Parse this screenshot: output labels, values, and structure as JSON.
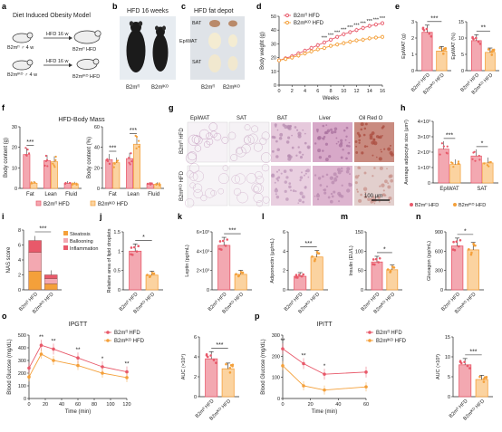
{
  "colors": {
    "wt": "#e8596a",
    "ko": "#f4a03a",
    "wt_light": "#f3a8b1",
    "ko_light": "#fbd3a0",
    "mouse": "#1b1b1b"
  },
  "panel_a": {
    "letter": "a",
    "title": "Diet Induced Obesity Model",
    "rows": [
      {
        "from": "B2mᶠˡ ♂ 4 w",
        "arrow": "HFD 16 w",
        "to": "B2mᶠˡ HFD"
      },
      {
        "from": "B2mᴵᴷᴼ ♂ 4 w",
        "arrow": "HFD 16 w",
        "to": "B2mᴵᴷᴼ HFD"
      }
    ]
  },
  "panel_b": {
    "letter": "b",
    "title": "HFD 16 weeks",
    "labels": [
      "B2mᶠˡ",
      "B2mᴵᴷᴼ"
    ]
  },
  "panel_c": {
    "letter": "c",
    "title": "HFD fat depot",
    "depots": [
      "BAT",
      "EpiWAT",
      "SAT"
    ],
    "labels": [
      "B2mᶠˡ",
      "B2mᴵᴷᴼ"
    ]
  },
  "panel_g": {
    "letter": "g",
    "columns": [
      "EpiWAT",
      "SAT",
      "BAT",
      "Liver",
      "Oil Red O"
    ],
    "rows": [
      "B2mᶠˡ HFD",
      "B2mᴵᴷᴼ HFD"
    ],
    "scale": "100 μm"
  },
  "legend": {
    "wt": "B2mᶠˡ HFD",
    "ko": "B2mᴵᴷᴼ HFD"
  },
  "chart_data": [
    {
      "id": "d",
      "type": "line",
      "ylabel": "Body weight (g)",
      "xlabel": "Weeks",
      "x": [
        0,
        1,
        2,
        3,
        4,
        5,
        6,
        7,
        8,
        9,
        10,
        11,
        12,
        13,
        14,
        15,
        16
      ],
      "xticks": [
        0,
        2,
        4,
        6,
        8,
        10,
        12,
        14,
        16
      ],
      "yticks": [
        0,
        10,
        20,
        30,
        40,
        50
      ],
      "ylim": [
        0,
        50
      ],
      "series": [
        {
          "name": "B2mᶠˡ HFD",
          "values": [
            18,
            19.5,
            21,
            23,
            25,
            27,
            29,
            31,
            33,
            35,
            37,
            38.5,
            40,
            41.5,
            43,
            44,
            45
          ]
        },
        {
          "name": "B2mᴵᴷᴼ HFD",
          "values": [
            18,
            19,
            20,
            21.5,
            23,
            24.5,
            26,
            27,
            28.5,
            29.5,
            30.5,
            31.5,
            32.5,
            33,
            34,
            34.5,
            35
          ]
        }
      ],
      "annotations": [
        "***"
      ]
    },
    {
      "id": "e1",
      "type": "bar",
      "ylabel": "EpiWAT (g)",
      "categories": [
        "B2mᶠˡ HFD",
        "B2mᴵᴷᴼ HFD"
      ],
      "values": [
        2.35,
        1.2
      ],
      "yticks": [
        0,
        1,
        2,
        3
      ],
      "ylim": [
        0,
        3
      ],
      "sig": "***"
    },
    {
      "id": "e2",
      "type": "bar",
      "ylabel": "EpiWAT (%)",
      "categories": [
        "B2mᶠˡ HFD",
        "B2mᴵᴷᴼ HFD"
      ],
      "values": [
        9.2,
        5.6
      ],
      "yticks": [
        0,
        5,
        10,
        15
      ],
      "ylim": [
        0,
        15
      ],
      "sig": "**"
    },
    {
      "id": "f",
      "type": "bar",
      "title": "HFD-Body Mass",
      "groups": [
        {
          "ylabel": "Body content (g)",
          "categories": [
            "Fat",
            "Lean",
            "Fluid"
          ],
          "yticks": [
            0,
            10,
            20,
            30
          ],
          "ylim": [
            0,
            30
          ],
          "series": [
            {
              "name": "B2mᶠˡ HFD",
              "values": [
                16.5,
                13.5,
                2.5
              ]
            },
            {
              "name": "B2mᴵᴷᴼ HFD",
              "values": [
                2.5,
                13,
                2.2
              ]
            }
          ],
          "sig": [
            "***",
            "",
            ""
          ]
        },
        {
          "ylabel": "Body content (%)",
          "categories": [
            "Fat",
            "Lean",
            "Fluid"
          ],
          "yticks": [
            0,
            20,
            40,
            60
          ],
          "ylim": [
            0,
            60
          ],
          "series": [
            {
              "name": "B2mᶠˡ HFD",
              "values": [
                28,
                29,
                4
              ]
            },
            {
              "name": "B2mᴵᴷᴼ HFD",
              "values": [
                25,
                43,
                4
              ]
            }
          ],
          "sig": [
            "***",
            "***",
            ""
          ]
        }
      ]
    },
    {
      "id": "h",
      "type": "bar",
      "ylabel": "Average adipocyte size (μm²)",
      "categories": [
        "EpiWAT",
        "SAT"
      ],
      "yticks": [
        0,
        1,
        2,
        3,
        4
      ],
      "ytick_labels": [
        "0",
        "1×10³",
        "2×10³",
        "3×10³",
        "4×10³"
      ],
      "ylim": [
        0,
        4
      ],
      "series": [
        {
          "name": "B2mᶠˡ HFD",
          "values": [
            2.2,
            1.75
          ]
        },
        {
          "name": "B2mᴵᴷᴼ HFD",
          "values": [
            1.2,
            1.3
          ]
        }
      ],
      "sig": [
        "***",
        "*"
      ]
    },
    {
      "id": "i",
      "type": "bar",
      "stacked": true,
      "ylabel": "NAS score",
      "categories": [
        "B2mᶠˡ HFD",
        "B2mᴵᴷᴼ HFD"
      ],
      "yticks": [
        0,
        2,
        4,
        6,
        8
      ],
      "ylim": [
        0,
        8
      ],
      "series": [
        {
          "name": "Steatosis",
          "values": [
            2.5,
            0.8
          ]
        },
        {
          "name": "Ballooning",
          "values": [
            2.5,
            0.7
          ]
        },
        {
          "name": "Inflammation",
          "values": [
            1.6,
            0.5
          ]
        }
      ],
      "sig": "***"
    },
    {
      "id": "j",
      "type": "bar",
      "ylabel": "Relative area of lipid droplets",
      "categories": [
        "B2mᶠˡ HFD",
        "B2mᴵᴷᴼ HFD"
      ],
      "values": [
        1.0,
        0.38
      ],
      "yticks": [
        0,
        0.5,
        1.0,
        1.5
      ],
      "ylim": [
        0,
        1.5
      ],
      "sig": "*"
    },
    {
      "id": "k",
      "type": "bar",
      "ylabel": "Leptin (pg/mL)",
      "categories": [
        "B2mᶠˡ HFD",
        "B2mᴵᴷᴼ HFD"
      ],
      "values": [
        4.6,
        1.6
      ],
      "yticks": [
        0,
        2,
        4,
        6
      ],
      "ytick_labels": [
        "0",
        "2×10³",
        "4×10³",
        "6×10³"
      ],
      "ylim": [
        0,
        6
      ],
      "sig": "***"
    },
    {
      "id": "l",
      "type": "bar",
      "ylabel": "Adiponectin (μg/mL)",
      "categories": [
        "B2mᶠˡ HFD",
        "B2mᴵᴷᴼ HFD"
      ],
      "values": [
        1.4,
        3.4
      ],
      "yticks": [
        0,
        2,
        4,
        6
      ],
      "ylim": [
        0,
        6
      ],
      "sig": "***"
    },
    {
      "id": "m",
      "type": "bar",
      "ylabel": "Insulin (EU/L)",
      "categories": [
        "B2mᶠˡ HFD",
        "B2mᴵᴷᴼ HFD"
      ],
      "values": [
        72,
        52
      ],
      "yticks": [
        0,
        50,
        100,
        150
      ],
      "ylim": [
        0,
        150
      ],
      "sig": "*"
    },
    {
      "id": "n",
      "type": "bar",
      "ylabel": "Glucagon (pg/mL)",
      "categories": [
        "B2mᶠˡ HFD",
        "B2mᴵᴷᴼ HFD"
      ],
      "values": [
        680,
        620
      ],
      "yticks": [
        0,
        300,
        600,
        900
      ],
      "ylim": [
        0,
        900
      ],
      "sig": "*"
    },
    {
      "id": "o",
      "type": "line",
      "title": "IPGTT",
      "ylabel": "Blood Glucose (mg/dL)",
      "xlabel": "Time (min)",
      "x": [
        0,
        15,
        30,
        60,
        90,
        120
      ],
      "xticks": [
        0,
        20,
        40,
        60,
        80,
        100,
        120
      ],
      "yticks": [
        0,
        100,
        200,
        300,
        400,
        500
      ],
      "ylim": [
        0,
        500
      ],
      "series": [
        {
          "name": "B2mᶠˡ HFD",
          "values": [
            240,
            420,
            390,
            320,
            250,
            210
          ]
        },
        {
          "name": "B2mᴵᴷᴼ HFD",
          "values": [
            170,
            350,
            300,
            260,
            200,
            165
          ]
        }
      ],
      "sig": [
        "",
        "**",
        "**",
        "**",
        "*",
        "**"
      ]
    },
    {
      "id": "o2",
      "type": "bar",
      "ylabel": "AUC (×10⁴)",
      "categories": [
        "B2mᶠˡ HFD",
        "B2mᴵᴷᴼ HFD"
      ],
      "values": [
        3.8,
        2.8
      ],
      "yticks": [
        0,
        2,
        4,
        6
      ],
      "ylim": [
        0,
        6
      ],
      "sig": "***"
    },
    {
      "id": "p",
      "type": "line",
      "title": "IPITT",
      "ylabel": "Blood Glucose (mg/dL)",
      "xlabel": "Time (min)",
      "x": [
        0,
        15,
        30,
        60
      ],
      "xticks": [
        0,
        20,
        40,
        60
      ],
      "yticks": [
        0,
        100,
        200,
        300
      ],
      "ylim": [
        0,
        300
      ],
      "series": [
        {
          "name": "B2mᶠˡ HFD",
          "values": [
            235,
            165,
            115,
            125
          ]
        },
        {
          "name": "B2mᴵᴷᴼ HFD",
          "values": [
            155,
            60,
            40,
            55
          ]
        }
      ],
      "sig": [
        "**",
        "**",
        "*",
        ""
      ]
    },
    {
      "id": "p2",
      "type": "bar",
      "ylabel": "AUC (×10³)",
      "categories": [
        "B2mᶠˡ HFD",
        "B2mᴵᴷᴼ HFD"
      ],
      "values": [
        8.0,
        4.3
      ],
      "yticks": [
        0,
        5,
        10,
        15
      ],
      "ylim": [
        0,
        15
      ],
      "sig": "***"
    }
  ]
}
